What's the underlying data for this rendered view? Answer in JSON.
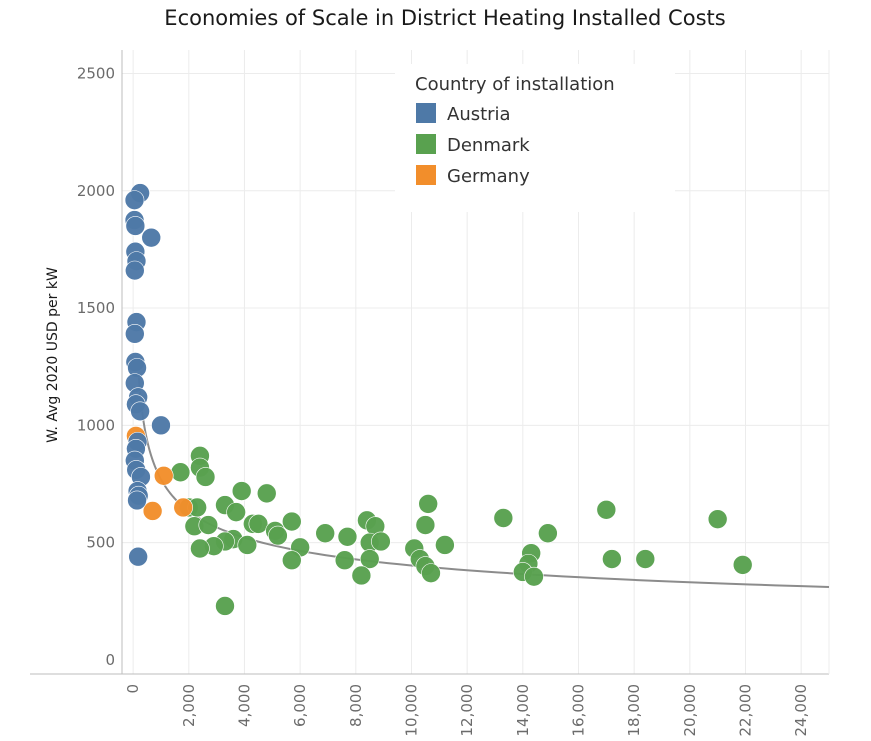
{
  "chart_data": {
    "type": "scatter",
    "title": "Economies of Scale in District Heating Installed Costs",
    "xlabel": "",
    "ylabel": "W. Avg 2020 USD per kW",
    "xlim": [
      -400,
      25000
    ],
    "ylim": [
      -60,
      2600
    ],
    "x_ticks": [
      0,
      2000,
      4000,
      6000,
      8000,
      10000,
      12000,
      14000,
      16000,
      18000,
      20000,
      22000,
      24000
    ],
    "x_tick_labels": [
      "0",
      "2,000",
      "4,000",
      "6,000",
      "8,000",
      "10,000",
      "12,000",
      "14,000",
      "16,000",
      "18,000",
      "20,000",
      "22,000",
      "24,000"
    ],
    "y_ticks": [
      0,
      500,
      1000,
      1500,
      2000,
      2500
    ],
    "y_tick_labels": [
      "0",
      "500",
      "1000",
      "1500",
      "2000",
      "2500"
    ],
    "grid": true,
    "legend": {
      "title": "Country of installation",
      "placement": "top-right",
      "entries": [
        "Austria",
        "Denmark",
        "Germany"
      ]
    },
    "series": [
      {
        "name": "Austria",
        "color": "#4e79a7",
        "points": [
          [
            250,
            1990
          ],
          [
            50,
            1960
          ],
          [
            50,
            1875
          ],
          [
            80,
            1850
          ],
          [
            650,
            1800
          ],
          [
            80,
            1740
          ],
          [
            120,
            1700
          ],
          [
            60,
            1660
          ],
          [
            120,
            1440
          ],
          [
            60,
            1390
          ],
          [
            80,
            1270
          ],
          [
            140,
            1245
          ],
          [
            60,
            1180
          ],
          [
            180,
            1120
          ],
          [
            100,
            1090
          ],
          [
            250,
            1060
          ],
          [
            1000,
            1000
          ],
          [
            160,
            930
          ],
          [
            100,
            900
          ],
          [
            60,
            850
          ],
          [
            110,
            810
          ],
          [
            280,
            780
          ],
          [
            160,
            720
          ],
          [
            200,
            700
          ],
          [
            140,
            680
          ],
          [
            180,
            440
          ]
        ]
      },
      {
        "name": "Denmark",
        "color": "#59a14f",
        "points": [
          [
            2400,
            870
          ],
          [
            1700,
            800
          ],
          [
            2400,
            820
          ],
          [
            2600,
            780
          ],
          [
            3900,
            720
          ],
          [
            4800,
            710
          ],
          [
            2000,
            650
          ],
          [
            2300,
            650
          ],
          [
            3300,
            660
          ],
          [
            3700,
            630
          ],
          [
            2200,
            570
          ],
          [
            2700,
            575
          ],
          [
            4300,
            580
          ],
          [
            4500,
            580
          ],
          [
            5100,
            550
          ],
          [
            5700,
            590
          ],
          [
            5200,
            530
          ],
          [
            6900,
            540
          ],
          [
            3600,
            515
          ],
          [
            3300,
            505
          ],
          [
            2900,
            485
          ],
          [
            2400,
            475
          ],
          [
            4100,
            490
          ],
          [
            6000,
            480
          ],
          [
            7700,
            525
          ],
          [
            8400,
            595
          ],
          [
            8700,
            570
          ],
          [
            8500,
            500
          ],
          [
            8900,
            505
          ],
          [
            5700,
            425
          ],
          [
            7600,
            425
          ],
          [
            8500,
            430
          ],
          [
            8200,
            360
          ],
          [
            3300,
            230
          ],
          [
            10600,
            665
          ],
          [
            10500,
            575
          ],
          [
            10100,
            475
          ],
          [
            11200,
            490
          ],
          [
            10300,
            430
          ],
          [
            10500,
            400
          ],
          [
            10700,
            370
          ],
          [
            13300,
            605
          ],
          [
            14300,
            455
          ],
          [
            14200,
            410
          ],
          [
            14000,
            375
          ],
          [
            14400,
            355
          ],
          [
            14900,
            540
          ],
          [
            17000,
            640
          ],
          [
            17200,
            430
          ],
          [
            18400,
            430
          ],
          [
            21000,
            600
          ],
          [
            21900,
            405
          ]
        ]
      },
      {
        "name": "Germany",
        "color": "#f28e2b",
        "points": [
          [
            100,
            955
          ],
          [
            1100,
            785
          ],
          [
            700,
            635
          ],
          [
            1800,
            650
          ]
        ]
      }
    ],
    "trendline": {
      "type": "power",
      "formula": "y = 1213 * (x / 200) ^ -0.282",
      "x_range": [
        200,
        25000
      ],
      "color": "#8c8c8c"
    }
  }
}
